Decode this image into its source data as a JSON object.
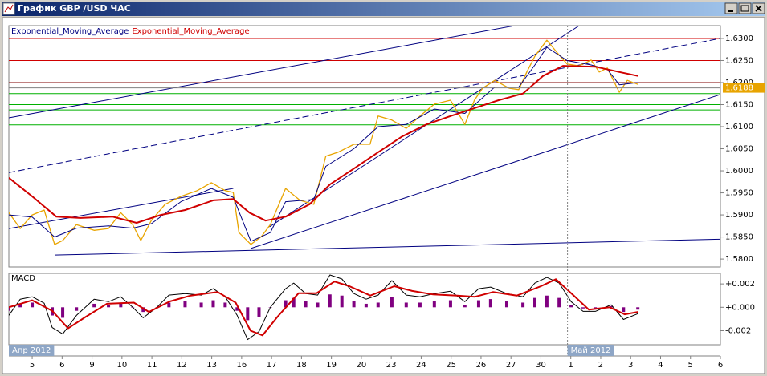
{
  "window": {
    "title": "График GBP /USD ЧАС"
  },
  "chart_data": [
    {
      "type": "line",
      "xlim": [
        -0.78,
        23
      ],
      "ylim": [
        1.5782,
        1.6329
      ],
      "yticks": [
        {
          "value": 1.63,
          "label": "1.6300"
        },
        {
          "value": 1.625,
          "label": "1.6250"
        },
        {
          "value": 1.62,
          "label": "1.6200"
        },
        {
          "value": 1.615,
          "label": "1.6150"
        },
        {
          "value": 1.61,
          "label": "1.6100"
        },
        {
          "value": 1.605,
          "label": "1.6050"
        },
        {
          "value": 1.6,
          "label": "1.6000"
        },
        {
          "value": 1.595,
          "label": "1.5950"
        },
        {
          "value": 1.59,
          "label": "1.5900"
        },
        {
          "value": 1.585,
          "label": "1.5850"
        },
        {
          "value": 1.58,
          "label": "1.5800"
        }
      ],
      "price_label": {
        "value": 1.6188,
        "label": "1.6188"
      },
      "series": [
        {
          "color": "#e8a400",
          "width": 1.3,
          "x": [
            -0.78,
            -0.4,
            0,
            0.4,
            0.75,
            1.02,
            1.48,
            2.07,
            2.55,
            2.96,
            3.36,
            3.63,
            3.98,
            4.44,
            4.97,
            5.51,
            5.99,
            6.45,
            6.72,
            6.91,
            7.31,
            7.66,
            7.96,
            8.47,
            8.95,
            9.41,
            9.81,
            10.22,
            10.75,
            11.29,
            11.56,
            12.02,
            12.5,
            12.96,
            13.44,
            13.98,
            14.46,
            14.78,
            15.05,
            15.46,
            15.94,
            16.26,
            16.53,
            16.8,
            17.2,
            17.53,
            17.88,
            18.28,
            18.68,
            18.95,
            19.22,
            19.62,
            19.89,
            20.24
          ],
          "values": [
            1.5905,
            1.5869,
            1.59,
            1.5911,
            1.5833,
            1.5842,
            1.5878,
            1.5865,
            1.5869,
            1.5905,
            1.5878,
            1.5842,
            1.5887,
            1.5924,
            1.5942,
            1.5955,
            1.5973,
            1.5955,
            1.5951,
            1.586,
            1.5833,
            1.5851,
            1.5878,
            1.596,
            1.5933,
            1.5924,
            1.6033,
            1.6042,
            1.606,
            1.606,
            1.6124,
            1.6115,
            1.6096,
            1.6124,
            1.6151,
            1.616,
            1.6105,
            1.616,
            1.6187,
            1.6205,
            1.6187,
            1.6184,
            1.6224,
            1.626,
            1.6296,
            1.6269,
            1.6242,
            1.6238,
            1.6251,
            1.6224,
            1.6233,
            1.6178,
            1.6205,
            1.6196
          ]
        },
        {
          "name": "Exponential_Moving_Average",
          "color": "#000080",
          "width": 1,
          "x": [
            -0.78,
            0,
            0.75,
            1.48,
            2.55,
            3.36,
            3.98,
            4.97,
            5.99,
            6.72,
            7.31,
            7.96,
            8.47,
            9.41,
            9.81,
            10.75,
            11.56,
            12.5,
            13.44,
            14.46,
            15.46,
            16.26,
            16.8,
            17.2,
            17.88,
            18.68,
            19.22,
            19.62,
            20.24
          ],
          "values": [
            1.59,
            1.5895,
            1.585,
            1.587,
            1.5875,
            1.587,
            1.588,
            1.593,
            1.596,
            1.594,
            1.584,
            1.586,
            1.593,
            1.5935,
            1.601,
            1.605,
            1.61,
            1.6105,
            1.614,
            1.613,
            1.619,
            1.619,
            1.624,
            1.628,
            1.625,
            1.624,
            1.623,
            1.6195,
            1.62
          ]
        },
        {
          "name": "Exponential_Moving_Average",
          "color": "#d00000",
          "width": 2,
          "x": [
            -0.78,
            0,
            0.81,
            1.61,
            2.69,
            3.49,
            4.3,
            5.11,
            6.05,
            6.72,
            7.26,
            7.8,
            8.47,
            9.27,
            9.95,
            10.75,
            11.56,
            12.37,
            13.17,
            13.98,
            14.78,
            15.59,
            16.4,
            17.07,
            17.74,
            18.82,
            19.62,
            20.24
          ],
          "values": [
            1.5984,
            1.5942,
            1.5896,
            1.5893,
            1.5896,
            1.5882,
            1.59,
            1.5911,
            1.5933,
            1.5936,
            1.5905,
            1.5887,
            1.5896,
            1.5924,
            1.5969,
            1.6005,
            1.6042,
            1.6078,
            1.6105,
            1.6124,
            1.6142,
            1.616,
            1.6175,
            1.6215,
            1.6238,
            1.6236,
            1.6224,
            1.6215
          ]
        }
      ],
      "levels": [
        {
          "value": 1.63,
          "color": "#d00000"
        },
        {
          "value": 1.625,
          "color": "#d00000"
        },
        {
          "value": 1.62,
          "color": "#800000"
        },
        {
          "value": 1.6175,
          "color": "#00b000"
        },
        {
          "value": 1.615,
          "color": "#00b000"
        },
        {
          "value": 1.6138,
          "color": "#00b000"
        },
        {
          "value": 1.6104,
          "color": "#00b000"
        }
      ],
      "trend_lines": [
        {
          "x": [
            -0.78,
            16.13
          ],
          "values": [
            1.612,
            1.6329
          ],
          "color": "#000080",
          "dashed": false
        },
        {
          "x": [
            -0.78,
            23
          ],
          "values": [
            1.5996,
            1.63
          ],
          "color": "#000080",
          "dashed": true
        },
        {
          "x": [
            -0.78,
            6.72
          ],
          "values": [
            1.5869,
            1.596
          ],
          "color": "#000080",
          "dashed": false
        },
        {
          "x": [
            0.75,
            23
          ],
          "values": [
            1.5809,
            1.5845
          ],
          "color": "#000080",
          "dashed": false
        },
        {
          "x": [
            7.31,
            23
          ],
          "values": [
            1.5824,
            1.6173
          ],
          "color": "#000080",
          "dashed": false
        },
        {
          "x": [
            7.93,
            18.28
          ],
          "values": [
            1.5873,
            1.6329
          ],
          "color": "#000080",
          "dashed": false
        }
      ]
    },
    {
      "type": "line",
      "title": "MACD",
      "xlim": [
        -0.78,
        23
      ],
      "ylim": [
        -0.0032,
        0.0029
      ],
      "yticks": [
        {
          "value": 0.002,
          "label": "+0.002"
        },
        {
          "value": 0,
          "label": "+0.000"
        },
        {
          "value": -0.002,
          "label": "-0.002"
        }
      ],
      "xticks": [
        {
          "value": 0,
          "label": "5"
        },
        {
          "value": 1,
          "label": "6"
        },
        {
          "value": 2,
          "label": "9"
        },
        {
          "value": 3,
          "label": "10"
        },
        {
          "value": 4,
          "label": "11"
        },
        {
          "value": 5,
          "label": "12"
        },
        {
          "value": 6,
          "label": "13"
        },
        {
          "value": 7,
          "label": "16"
        },
        {
          "value": 8,
          "label": "17"
        },
        {
          "value": 9,
          "label": "18"
        },
        {
          "value": 10,
          "label": "19"
        },
        {
          "value": 11,
          "label": "20"
        },
        {
          "value": 12,
          "label": "23"
        },
        {
          "value": 13,
          "label": "24"
        },
        {
          "value": 14,
          "label": "25"
        },
        {
          "value": 15,
          "label": "26"
        },
        {
          "value": 16,
          "label": "27"
        },
        {
          "value": 17,
          "label": "30"
        },
        {
          "value": 18,
          "label": "1"
        },
        {
          "value": 19,
          "label": "2"
        },
        {
          "value": 20,
          "label": "3"
        },
        {
          "value": 21,
          "label": "4"
        },
        {
          "value": 22,
          "label": "5"
        },
        {
          "value": 23,
          "label": "6"
        }
      ],
      "period_labels": [
        {
          "value": -0.78,
          "label": "Апр 2012"
        },
        {
          "value": 17.89,
          "label": "Май 2012"
        }
      ],
      "series": [
        {
          "type": "bar",
          "color": "#800080",
          "x": [
            -0.78,
            -0.4,
            0,
            0.4,
            0.67,
            1.02,
            1.48,
            2.07,
            2.55,
            2.96,
            3.36,
            3.71,
            4.17,
            4.57,
            5.11,
            5.65,
            6.05,
            6.45,
            6.85,
            7.2,
            7.58,
            7.96,
            8.47,
            8.74,
            9.14,
            9.54,
            9.95,
            10.35,
            10.75,
            11.16,
            11.56,
            12.02,
            12.5,
            12.96,
            13.44,
            13.98,
            14.46,
            14.92,
            15.32,
            15.86,
            16.4,
            16.8,
            17.2,
            17.61,
            18.01,
            18.41,
            18.82,
            19.35,
            19.76,
            20.24
          ],
          "values": [
            -0.0003,
            0.0003,
            0.0004,
            0.0001,
            -0.0007,
            -0.0009,
            -0.0003,
            0.0003,
            0.0002,
            0.0004,
            0,
            -0.0004,
            0,
            0.0004,
            0.0005,
            0.0004,
            0.0006,
            0.0004,
            -0.0003,
            -0.0011,
            -0.0008,
            0,
            0.0006,
            0.0008,
            0.0005,
            0.0004,
            0.0011,
            0.001,
            0.0005,
            0.0003,
            0.0004,
            0.0009,
            0.0004,
            0.0004,
            0.0005,
            0.0006,
            0.0002,
            0.0006,
            0.0007,
            0.0005,
            0.0004,
            0.0008,
            0.001,
            0.0008,
            0.0002,
            -0.0001,
            -0.0001,
            0.0001,
            -0.0004,
            -0.0002
          ]
        },
        {
          "type": "line",
          "color": "#000000",
          "width": 1,
          "x": [
            -0.78,
            -0.4,
            0,
            0.4,
            0.67,
            1.02,
            1.48,
            2.07,
            2.55,
            2.96,
            3.36,
            3.71,
            4.17,
            4.57,
            5.11,
            5.65,
            6.05,
            6.45,
            6.85,
            7.2,
            7.58,
            7.96,
            8.47,
            8.74,
            9.14,
            9.54,
            9.95,
            10.35,
            10.75,
            11.16,
            11.56,
            12.02,
            12.5,
            12.96,
            13.44,
            13.98,
            14.46,
            14.92,
            15.32,
            15.86,
            16.4,
            16.8,
            17.2,
            17.61,
            18.01,
            18.41,
            18.82,
            19.35,
            19.76,
            20.24
          ],
          "values": [
            -0.00069,
            0.00069,
            0.0009,
            0.00035,
            -0.00173,
            -0.00228,
            -0.00069,
            0.00069,
            0.00048,
            0.0009,
            0,
            -0.0009,
            0,
            0.00104,
            0.00117,
            0.00104,
            0.00159,
            0.0009,
            -0.00069,
            -0.00276,
            -0.00207,
            0,
            0.00159,
            0.00207,
            0.00117,
            0.00104,
            0.00276,
            0.00242,
            0.00117,
            0.00069,
            0.00104,
            0.00228,
            0.00104,
            0.0009,
            0.00117,
            0.00138,
            0.00048,
            0.00159,
            0.00173,
            0.00117,
            0.0009,
            0.00207,
            0.00255,
            0.00207,
            0.00048,
            -0.00035,
            -0.00035,
            0.00021,
            -0.00104,
            -0.00055
          ]
        },
        {
          "type": "line",
          "color": "#d00000",
          "width": 2,
          "x": [
            -0.78,
            0,
            0.67,
            1.2,
            1.8,
            2.5,
            3.4,
            3.9,
            4.6,
            5.3,
            6.2,
            6.8,
            7.3,
            7.7,
            8.2,
            8.9,
            9.5,
            10.1,
            10.6,
            11.3,
            12.1,
            12.7,
            13.4,
            14.2,
            14.8,
            15.4,
            16.2,
            17,
            17.5,
            18.1,
            18.6,
            19.3,
            19.8,
            20.24
          ],
          "values": [
            0,
            0.0006,
            -0.0003,
            -0.0018,
            -0.0008,
            0.0003,
            0.0004,
            -0.0004,
            0.0005,
            0.001,
            0.0013,
            0.0004,
            -0.002,
            -0.0024,
            -0.0008,
            0.0012,
            0.0012,
            0.0022,
            0.0018,
            0.001,
            0.0018,
            0.0014,
            0.0011,
            0.001,
            0.0009,
            0.0013,
            0.001,
            0.0018,
            0.0024,
            0.001,
            -0.0002,
            0,
            -0.0006,
            -0.0004
          ]
        }
      ]
    }
  ]
}
